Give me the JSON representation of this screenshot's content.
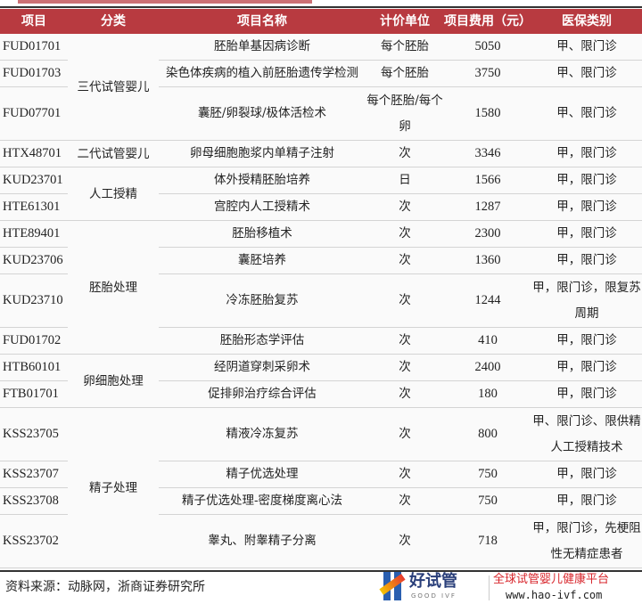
{
  "table": {
    "headers": [
      "项目",
      "分类",
      "项目名称",
      "计价单位",
      "项目费用（元）",
      "医保类别"
    ],
    "groups": [
      {
        "category": "三代试管婴儿",
        "rows": [
          {
            "code": "FUD01701",
            "name": "胚胎单基因病诊断",
            "unit": "每个胚胎",
            "fee": "5050",
            "insurance": "甲、限门诊",
            "tall": false
          },
          {
            "code": "FUD01703",
            "name": "染色体疾病的植入前胚胎遗传学检测",
            "unit": "每个胚胎",
            "fee": "3750",
            "insurance": "甲、限门诊",
            "tall": false
          },
          {
            "code": "FUD07701",
            "name": "囊胚/卵裂球/极体活检术",
            "unit": "每个胚胎/每个卵",
            "fee": "1580",
            "insurance": "甲、限门诊",
            "tall": true
          }
        ]
      },
      {
        "category": "二代试管婴儿",
        "rows": [
          {
            "code": "HTX48701",
            "name": "卵母细胞胞浆内单精子注射",
            "unit": "次",
            "fee": "3346",
            "insurance": "甲，限门诊",
            "tall": false
          }
        ]
      },
      {
        "category": "人工授精",
        "rows": [
          {
            "code": "KUD23701",
            "name": "体外授精胚胎培养",
            "unit": "日",
            "fee": "1566",
            "insurance": "甲，限门诊",
            "tall": false
          },
          {
            "code": "HTE61301",
            "name": "宫腔内人工授精术",
            "unit": "次",
            "fee": "1287",
            "insurance": "甲，限门诊",
            "tall": false
          }
        ]
      },
      {
        "category": "胚胎处理",
        "rows": [
          {
            "code": "HTE89401",
            "name": "胚胎移植术",
            "unit": "次",
            "fee": "2300",
            "insurance": "甲，限门诊",
            "tall": false
          },
          {
            "code": "KUD23706",
            "name": "囊胚培养",
            "unit": "次",
            "fee": "1360",
            "insurance": "甲，限门诊",
            "tall": false
          },
          {
            "code": "KUD23710",
            "name": "冷冻胚胎复苏",
            "unit": "次",
            "fee": "1244",
            "insurance": "甲，限门诊，限复苏周期",
            "tall": true
          },
          {
            "code": "FUD01702",
            "name": "胚胎形态学评估",
            "unit": "次",
            "fee": "410",
            "insurance": "甲，限门诊",
            "tall": false
          }
        ]
      },
      {
        "category": "卵细胞处理",
        "rows": [
          {
            "code": "HTB60101",
            "name": "经阴道穿刺采卵术",
            "unit": "次",
            "fee": "2400",
            "insurance": "甲，限门诊",
            "tall": false
          },
          {
            "code": "FTB01701",
            "name": "促排卵治疗综合评估",
            "unit": "次",
            "fee": "180",
            "insurance": "甲，限门诊",
            "tall": false
          }
        ]
      },
      {
        "category": "精子处理",
        "rows": [
          {
            "code": "KSS23705",
            "name": "精液冷冻复苏",
            "unit": "次",
            "fee": "800",
            "insurance": "甲、限门诊、限供精人工授精技术",
            "tall": true
          },
          {
            "code": "KSS23707",
            "name": "精子优选处理",
            "unit": "次",
            "fee": "750",
            "insurance": "甲，限门诊",
            "tall": false
          },
          {
            "code": "KSS23708",
            "name": "精子优选处理-密度梯度离心法",
            "unit": "次",
            "fee": "750",
            "insurance": "甲，限门诊",
            "tall": false
          },
          {
            "code": "KSS23702",
            "name": "睾丸、附睾精子分离",
            "unit": "次",
            "fee": "718",
            "insurance": "甲，限门诊，先梗阻性无精症患者",
            "tall": true
          }
        ]
      }
    ]
  },
  "footer": {
    "source": "资料来源：动脉网，浙商证券研究所",
    "logo_name": "好试管",
    "logo_en": "GOOD IVF",
    "slogan": "全球试管婴儿健康平台",
    "url": "www.hao-ivf.com"
  },
  "colors": {
    "header_bg": "#b83a40",
    "slogan": "#d8262c",
    "logo_blue": "#2a5fb0"
  }
}
